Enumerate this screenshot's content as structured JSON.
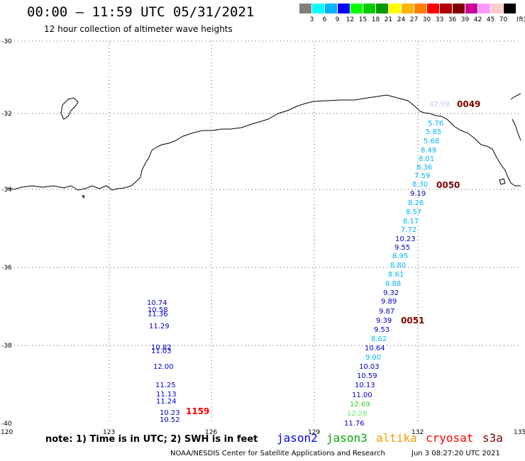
{
  "header": {
    "title": "00:00 – 11:59 UTC 05/31/2021",
    "subtitle": "12 hour collection of altimeter wave heights"
  },
  "scale": {
    "colors": [
      "#7f7f7f",
      "#00ffff",
      "#00b4ff",
      "#0000ff",
      "#00ff00",
      "#00cc00",
      "#009900",
      "#ffff00",
      "#ffb400",
      "#ff7f00",
      "#ff0000",
      "#b40000",
      "#7f0000",
      "#cc0099",
      "#ff99ff",
      "#ffcccc",
      "#000000"
    ],
    "labels": [
      "3",
      "6",
      "9",
      "12",
      "15",
      "18",
      "21",
      "24",
      "27",
      "30",
      "33",
      "36",
      "39",
      "42",
      "45",
      "70"
    ],
    "unit": "(ft)"
  },
  "axes": {
    "lat_labels": [
      "-30",
      "-32",
      "-34",
      "-36",
      "-38",
      "-40"
    ],
    "lon_labels": [
      "120",
      "123",
      "126",
      "129",
      "132",
      "135"
    ]
  },
  "track_east": [
    {
      "v": "42.99",
      "c": "#c8c8f0"
    },
    {
      "v": "5.76",
      "c": "#00b4ff"
    },
    {
      "v": "5.85",
      "c": "#00b4ff"
    },
    {
      "v": "5.68",
      "c": "#00b4ff"
    },
    {
      "v": "8.49",
      "c": "#00b4ff"
    },
    {
      "v": "8.01",
      "c": "#00b4ff"
    },
    {
      "v": "8.36",
      "c": "#00b4ff"
    },
    {
      "v": "7.59",
      "c": "#00b4ff"
    },
    {
      "v": "8.30",
      "c": "#00b4ff"
    },
    {
      "v": "9.19",
      "c": "#0000cc"
    },
    {
      "v": "8.26",
      "c": "#00b4ff"
    },
    {
      "v": "8.57",
      "c": "#00b4ff"
    },
    {
      "v": "8.17",
      "c": "#00b4ff"
    },
    {
      "v": "7.72",
      "c": "#00b4ff"
    },
    {
      "v": "10.23",
      "c": "#0000cc"
    },
    {
      "v": "9.55",
      "c": "#0000cc"
    },
    {
      "v": "8.95",
      "c": "#00b4ff"
    },
    {
      "v": "8.80",
      "c": "#00b4ff"
    },
    {
      "v": "8.61",
      "c": "#00b4ff"
    },
    {
      "v": "8.88",
      "c": "#00b4ff"
    },
    {
      "v": "9.32",
      "c": "#0000cc"
    },
    {
      "v": "9.89",
      "c": "#0000cc"
    },
    {
      "v": "9.87",
      "c": "#0000cc"
    },
    {
      "v": "9.39",
      "c": "#0000cc"
    },
    {
      "v": "9.53",
      "c": "#0000cc"
    },
    {
      "v": "8.62",
      "c": "#00b4ff"
    },
    {
      "v": "10.64",
      "c": "#0000cc"
    },
    {
      "v": "9.00",
      "c": "#00b4ff"
    },
    {
      "v": "10.03",
      "c": "#0000cc"
    },
    {
      "v": "10.59",
      "c": "#0000cc"
    },
    {
      "v": "10.13",
      "c": "#0000cc"
    },
    {
      "v": "11.00",
      "c": "#0000cc"
    },
    {
      "v": "12.69",
      "c": "#33cc33"
    },
    {
      "v": "12.28",
      "c": "#66ee66"
    },
    {
      "v": "11.76",
      "c": "#0000cc"
    }
  ],
  "track_west": [
    {
      "v": "10.74",
      "c": "#0000cc"
    },
    {
      "v": "10.58",
      "c": "#0000cc"
    },
    {
      "v": "11.36",
      "c": "#0000cc"
    },
    {
      "v": "11.29",
      "c": "#0000cc"
    },
    {
      "v": "10.82",
      "c": "#0000cc"
    },
    {
      "v": "11.03",
      "c": "#0000cc"
    },
    {
      "v": "12.00",
      "c": "#0000cc"
    },
    {
      "v": "11.25",
      "c": "#0000cc"
    },
    {
      "v": "11.13",
      "c": "#0000cc"
    },
    {
      "v": "11.24",
      "c": "#0000cc"
    },
    {
      "v": "10.23",
      "c": "#0000cc"
    },
    {
      "v": "10.52",
      "c": "#0000cc"
    }
  ],
  "time_marks": [
    {
      "t": "0049",
      "c": "#7f0000"
    },
    {
      "t": "0050",
      "c": "#7f0000"
    },
    {
      "t": "0051",
      "c": "#7f0000"
    },
    {
      "t": "1159",
      "c": "#ff0000"
    }
  ],
  "footer": {
    "note": "note: 1) Time is in UTC; 2) SWH is in feet",
    "satellites": [
      {
        "name": "jason2",
        "color": "#0000ff"
      },
      {
        "name": "jason3",
        "color": "#00aa00"
      },
      {
        "name": "altika",
        "color": "#ff9900"
      },
      {
        "name": "cryosat",
        "color": "#ff0000"
      },
      {
        "name": "s3a",
        "color": "#7f0000"
      }
    ],
    "credit": "NOAA/NESDIS Center for Satellite Applications and Research",
    "timestamp": "Jun  3 08:27:20 UTC 2021"
  }
}
